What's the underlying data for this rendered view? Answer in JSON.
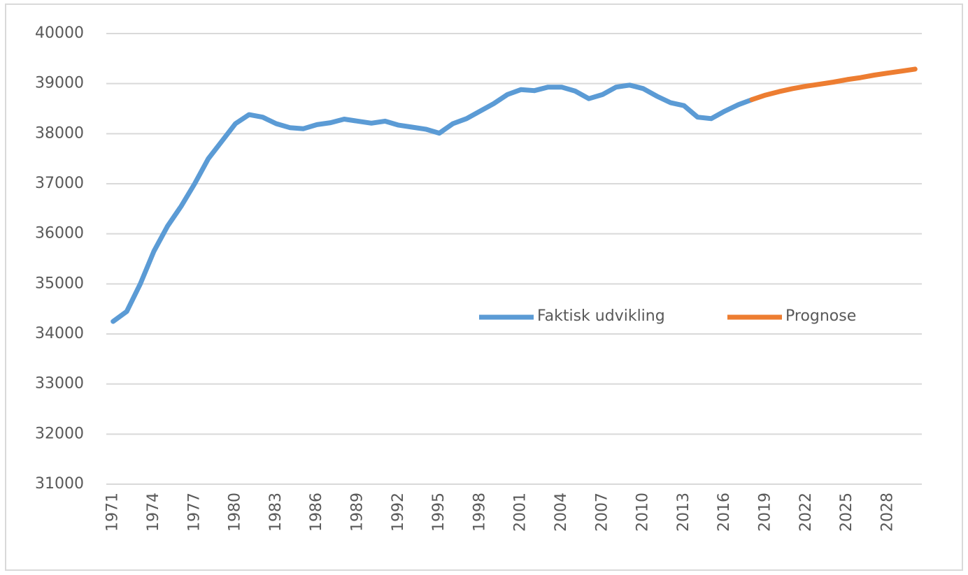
{
  "chart_data": {
    "type": "line",
    "categories": [
      "1971",
      null,
      null,
      "1974",
      null,
      null,
      "1977",
      null,
      null,
      "1980",
      null,
      null,
      "1983",
      null,
      null,
      "1986",
      null,
      null,
      "1989",
      null,
      null,
      "1992",
      null,
      null,
      "1995",
      null,
      null,
      "1998",
      null,
      null,
      "2001",
      null,
      null,
      "2004",
      null,
      null,
      "2007",
      null,
      null,
      "2010",
      null,
      null,
      "2013",
      null,
      null,
      "2016",
      null,
      null,
      "2019",
      null,
      null,
      "2022",
      null,
      null,
      "2025",
      null,
      null,
      "2028",
      null,
      null
    ],
    "series": [
      {
        "name": "Faktisk udvikling",
        "color": "#5b9bd5",
        "values": [
          34250,
          34450,
          35000,
          35650,
          36150,
          36550,
          37000,
          37500,
          37850,
          38200,
          38380,
          38330,
          38200,
          38120,
          38100,
          38180,
          38220,
          38290,
          38250,
          38210,
          38250,
          38170,
          38130,
          38090,
          38010,
          38200,
          38300,
          38450,
          38600,
          38780,
          38880,
          38860,
          38930,
          38930,
          38850,
          38700,
          38780,
          38930,
          38970,
          38900,
          38750,
          38620,
          38560,
          38330,
          38300,
          38450,
          38580,
          38680,
          null,
          null,
          null,
          null,
          null,
          null,
          null,
          null,
          null,
          null,
          null,
          null
        ]
      },
      {
        "name": "Prognose",
        "color": "#ed7d31",
        "values": [
          null,
          null,
          null,
          null,
          null,
          null,
          null,
          null,
          null,
          null,
          null,
          null,
          null,
          null,
          null,
          null,
          null,
          null,
          null,
          null,
          null,
          null,
          null,
          null,
          null,
          null,
          null,
          null,
          null,
          null,
          null,
          null,
          null,
          null,
          null,
          null,
          null,
          null,
          null,
          null,
          null,
          null,
          null,
          null,
          null,
          null,
          null,
          38680,
          38770,
          38840,
          38900,
          38950,
          38990,
          39030,
          39080,
          39120,
          39170,
          39210,
          39250,
          39290
        ]
      }
    ],
    "ylim": [
      31000,
      40000
    ],
    "yticks": [
      31000,
      32000,
      33000,
      34000,
      35000,
      36000,
      37000,
      38000,
      39000,
      40000
    ],
    "grid": true
  }
}
